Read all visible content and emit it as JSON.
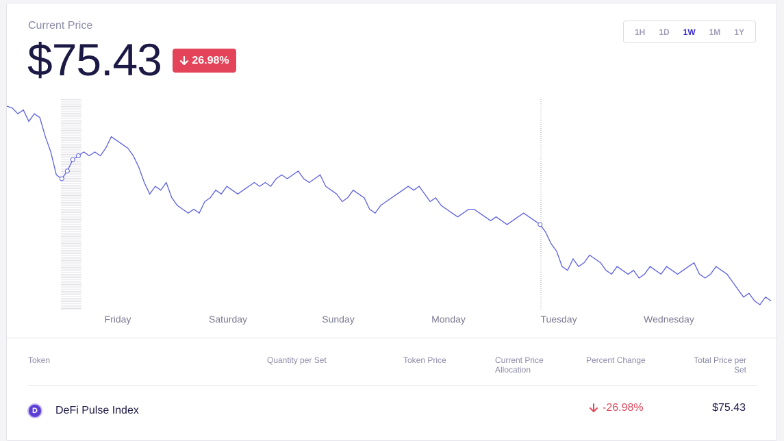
{
  "header": {
    "price_label": "Current Price",
    "price": "$75.43",
    "change_badge": "26.98%",
    "change_direction": "down",
    "badge_color": "#e34459"
  },
  "range_selector": {
    "options": [
      "1H",
      "1D",
      "1W",
      "1M",
      "1Y"
    ],
    "selected": "1W"
  },
  "chart": {
    "line_color": "#5b5ee0",
    "day_labels": [
      "Friday",
      "Saturday",
      "Sunday",
      "Monday",
      "Tuesday",
      "Wednesday"
    ]
  },
  "chart_data": {
    "type": "line",
    "title": "",
    "xlabel": "",
    "ylabel": "",
    "x_ticks": [
      "Friday",
      "Saturday",
      "Sunday",
      "Monday",
      "Tuesday",
      "Wednesday"
    ],
    "series": [
      {
        "values": [
          100,
          99.5,
          98,
          99,
          96,
          98,
          97,
          92,
          88,
          82,
          81,
          83,
          86,
          87,
          88,
          87,
          88,
          87,
          89,
          92,
          91,
          90,
          89,
          87,
          84,
          80,
          77,
          79,
          78,
          80,
          76,
          74,
          73,
          72,
          73,
          72,
          75,
          76,
          78,
          77,
          79,
          78,
          77,
          78,
          79,
          80,
          79,
          80,
          79,
          81,
          82,
          81,
          82,
          83,
          81,
          80,
          81,
          82,
          79,
          78,
          77,
          75,
          76,
          78,
          77,
          76,
          73,
          72,
          74,
          75,
          76,
          77,
          78,
          79,
          78,
          79,
          77,
          75,
          76,
          74,
          73,
          72,
          71,
          72,
          73,
          73,
          72,
          71,
          70,
          71,
          70,
          69,
          70,
          71,
          72,
          71,
          70,
          69,
          67,
          64,
          62,
          58,
          57,
          60,
          58,
          59,
          61,
          60,
          59,
          57,
          56,
          58,
          57,
          56,
          57,
          55,
          56,
          58,
          57,
          56,
          58,
          57,
          56,
          57,
          58,
          59,
          56,
          55,
          56,
          58,
          57,
          56,
          54,
          52,
          50,
          51,
          49,
          48,
          50,
          49
        ]
      }
    ]
  },
  "table": {
    "headers": {
      "token": "Token",
      "quantity": "Quantity per Set",
      "token_price": "Token Price",
      "allocation_line1": "Current Price",
      "allocation_line2": "Allocation",
      "percent_change": "Percent Change",
      "total_line1": "Total Price per",
      "total_line2": "Set"
    },
    "rows": [
      {
        "icon_letter": "D",
        "token": "DeFi Pulse Index",
        "quantity": "",
        "token_price": "",
        "allocation": "",
        "percent_change": "-26.98%",
        "total_price": "$75.43"
      }
    ]
  }
}
